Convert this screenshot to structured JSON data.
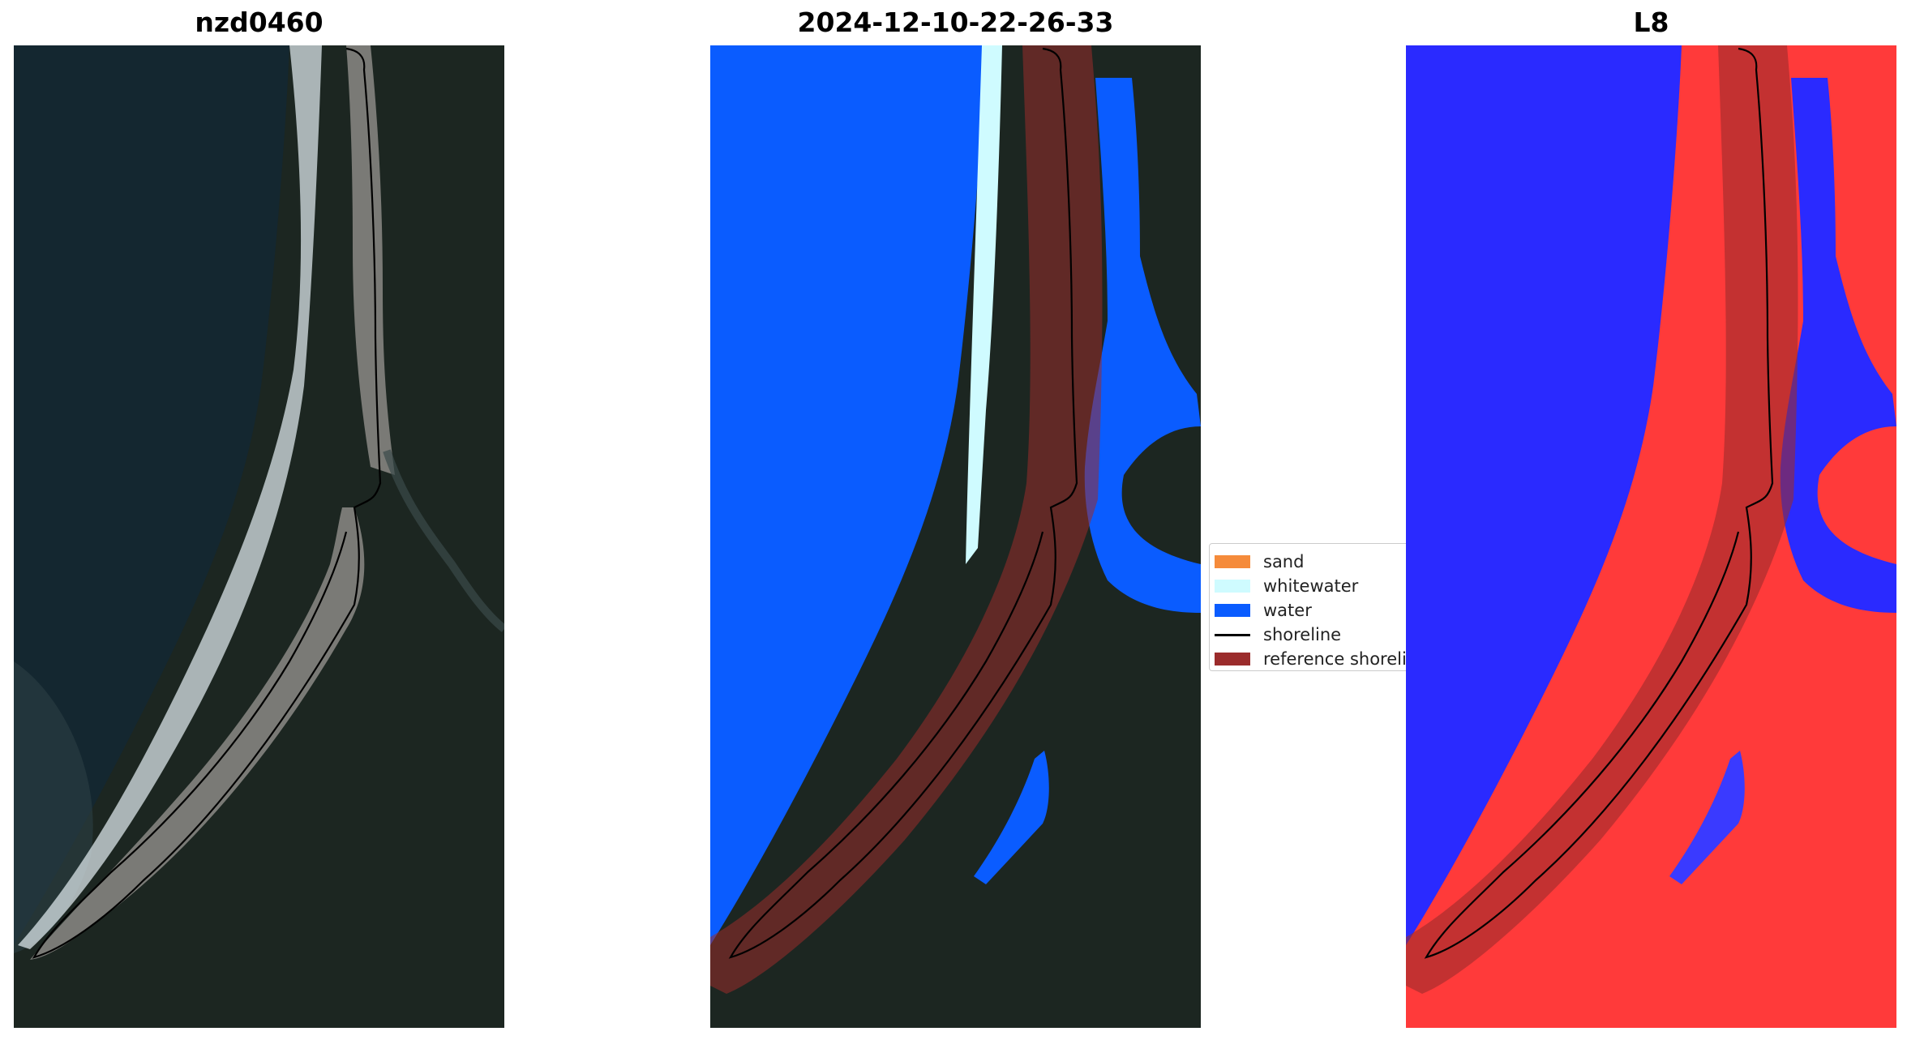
{
  "panels": [
    {
      "title": "nzd0460"
    },
    {
      "title": "2024-12-10-22-26-33"
    },
    {
      "title": "L8"
    }
  ],
  "legend": {
    "items": [
      {
        "label": "sand",
        "color": "#f58b3b",
        "kind": "patch"
      },
      {
        "label": "whitewater",
        "color": "#cffbff",
        "kind": "patch"
      },
      {
        "label": "water",
        "color": "#0a5cff",
        "kind": "patch"
      },
      {
        "label": "shoreline",
        "color": "#000000",
        "kind": "line"
      },
      {
        "label": "reference shoreline",
        "color": "#9b2c2c",
        "kind": "patch"
      }
    ]
  },
  "colors": {
    "ocean": "#142730",
    "land": "#1c2621",
    "beach": "#7a7a76",
    "surf": "#d9e4e8",
    "water_class": "#0a5cff",
    "whitewater_class": "#cffbff",
    "reference_buffer": "#9b2c2c",
    "index_water": "#1515ff",
    "index_land": "#ff2a2a"
  }
}
